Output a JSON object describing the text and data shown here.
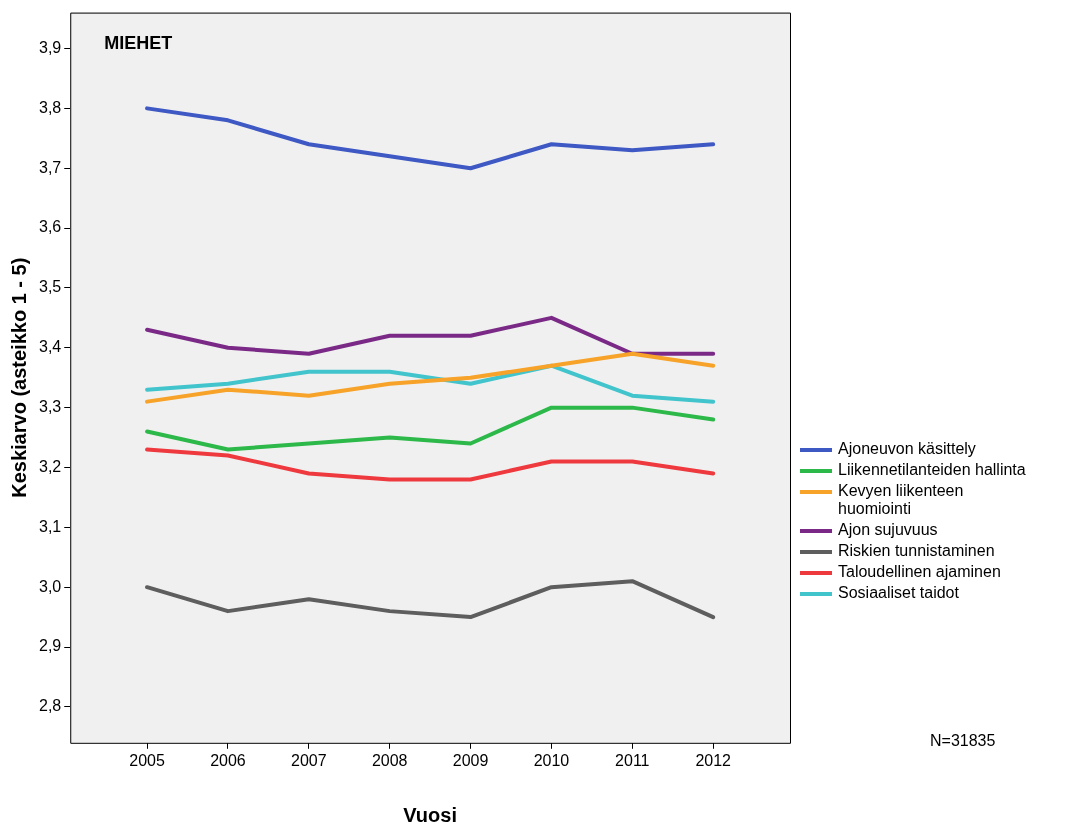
{
  "chart_data": {
    "type": "line",
    "title": "MIEHET",
    "xlabel": "Vuosi",
    "ylabel": "Keskiarvo (asteikko 1 - 5)",
    "x": [
      2005,
      2006,
      2007,
      2008,
      2009,
      2010,
      2011,
      2012
    ],
    "xlim": [
      2004.05,
      2012.95
    ],
    "xticks": [
      2005,
      2006,
      2007,
      2008,
      2009,
      2010,
      2011,
      2012
    ],
    "ylim": [
      2.74,
      3.96
    ],
    "yticks": [
      {
        "value": 2.8,
        "label": "2,8"
      },
      {
        "value": 2.9,
        "label": "2,9"
      },
      {
        "value": 3.0,
        "label": "3,0"
      },
      {
        "value": 3.1,
        "label": "3,1"
      },
      {
        "value": 3.2,
        "label": "3,2"
      },
      {
        "value": 3.3,
        "label": "3,3"
      },
      {
        "value": 3.4,
        "label": "3,4"
      },
      {
        "value": 3.5,
        "label": "3,5"
      },
      {
        "value": 3.6,
        "label": "3,6"
      },
      {
        "value": 3.7,
        "label": "3,7"
      },
      {
        "value": 3.8,
        "label": "3,8"
      },
      {
        "value": 3.9,
        "label": "3,9"
      }
    ],
    "legend": "right",
    "marker": "none",
    "annotations": [
      "N=31835"
    ],
    "series": [
      {
        "name": "Ajoneuvon käsittely",
        "color": "#3e58c4",
        "values": [
          3.8,
          3.78,
          3.74,
          3.72,
          3.7,
          3.74,
          3.73,
          3.74
        ]
      },
      {
        "name": "Liikennetilanteiden hallinta",
        "color": "#2db84a",
        "values": [
          3.26,
          3.23,
          3.24,
          3.25,
          3.24,
          3.3,
          3.3,
          3.28
        ]
      },
      {
        "name": "Kevyen liikenteen huomiointi",
        "color": "#f7a229",
        "values": [
          3.31,
          3.33,
          3.32,
          3.34,
          3.35,
          3.37,
          3.39,
          3.37
        ]
      },
      {
        "name": "Ajon sujuvuus",
        "color": "#7a2a86",
        "values": [
          3.43,
          3.4,
          3.39,
          3.42,
          3.42,
          3.45,
          3.39,
          3.39
        ]
      },
      {
        "name": "Riskien tunnistaminen",
        "color": "#5e5e5e",
        "values": [
          3.0,
          2.96,
          2.98,
          2.96,
          2.95,
          3.0,
          3.01,
          2.95
        ]
      },
      {
        "name": "Taloudellinen ajaminen",
        "color": "#ee3a3f",
        "values": [
          3.23,
          3.22,
          3.19,
          3.18,
          3.18,
          3.21,
          3.21,
          3.19
        ]
      },
      {
        "name": "Sosiaaliset taidot",
        "color": "#41c4cc",
        "values": [
          3.33,
          3.34,
          3.36,
          3.36,
          3.34,
          3.37,
          3.32,
          3.31
        ]
      }
    ]
  }
}
